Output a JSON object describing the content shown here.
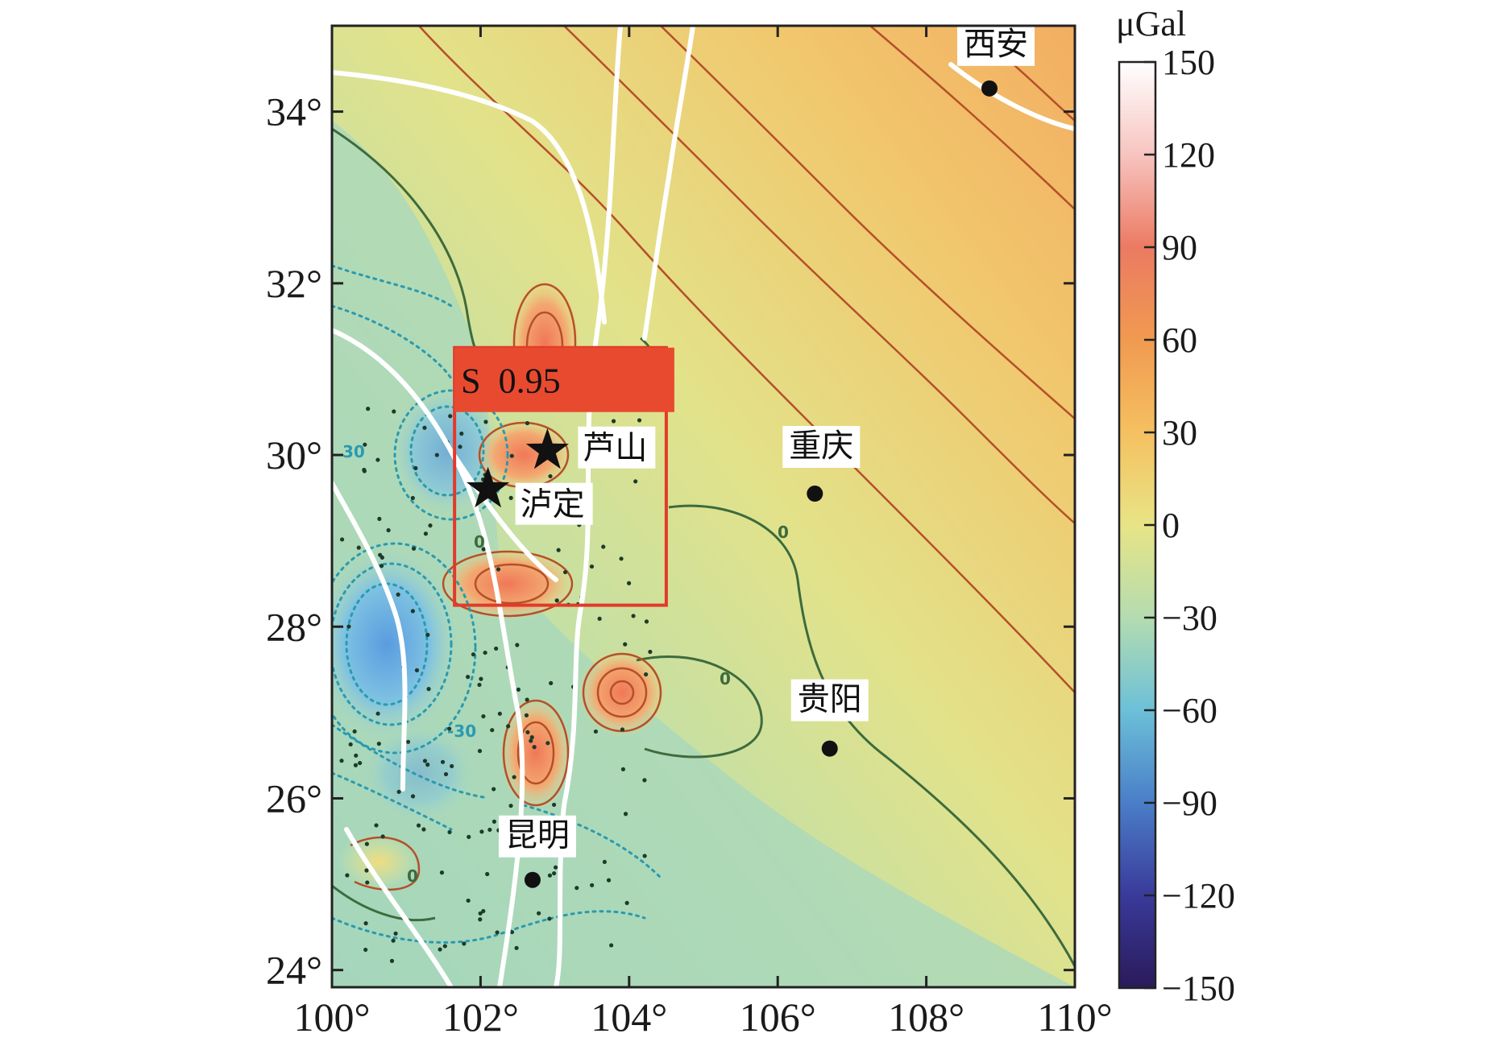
{
  "map": {
    "lon_range": [
      100,
      110
    ],
    "lat_range": [
      23.8,
      35
    ],
    "x_ticks": [
      {
        "value": 100,
        "label": "100°"
      },
      {
        "value": 102,
        "label": "102°"
      },
      {
        "value": 104,
        "label": "104°"
      },
      {
        "value": 106,
        "label": "106°"
      },
      {
        "value": 108,
        "label": "108°"
      },
      {
        "value": 110,
        "label": "110°"
      }
    ],
    "y_ticks": [
      {
        "value": 24,
        "label": "24°"
      },
      {
        "value": 26,
        "label": "26°"
      },
      {
        "value": 28,
        "label": "28°"
      },
      {
        "value": 30,
        "label": "30°"
      },
      {
        "value": 32,
        "label": "32°"
      },
      {
        "value": 34,
        "label": "34°"
      }
    ],
    "cities": [
      {
        "name": "西安",
        "lon": 108.85,
        "lat": 34.27
      },
      {
        "name": "重庆",
        "lon": 106.5,
        "lat": 29.55
      },
      {
        "name": "贵阳",
        "lon": 106.7,
        "lat": 26.58
      },
      {
        "name": "昆明",
        "lon": 102.7,
        "lat": 25.05
      }
    ],
    "epicenters": [
      {
        "name": "芦山",
        "lon": 102.9,
        "lat": 30.05
      },
      {
        "name": "泸定",
        "lon": 102.1,
        "lat": 29.6
      }
    ],
    "contour_labels": [
      "30",
      "0",
      "0",
      "0",
      "-30",
      "0"
    ],
    "study_box": {
      "lon_min": 101.65,
      "lon_max": 104.5,
      "lat_min": 28.25,
      "lat_max": 30.5
    },
    "study_label": "S  0.95",
    "colors": {
      "box": "#e23a2a",
      "label_bg": "#e84a30",
      "fault": "#ffffff",
      "pos_contour": "#b5502a",
      "zero_contour": "#3d6b3d",
      "neg_contour": "#2a9ab0"
    }
  },
  "colorbar": {
    "unit": "μGal",
    "ticks": [
      "150",
      "120",
      "90",
      "60",
      "30",
      "0",
      "−30",
      "−60",
      "−90",
      "−120",
      "−150"
    ],
    "range": [
      -150,
      150
    ],
    "colors": [
      "#ffffff",
      "#f7c4c0",
      "#ec7a62",
      "#f09a50",
      "#f5c060",
      "#e8e486",
      "#b4dcb0",
      "#6cc0d8",
      "#4a7ec8",
      "#3a3a9a",
      "#2a1a5a"
    ]
  }
}
